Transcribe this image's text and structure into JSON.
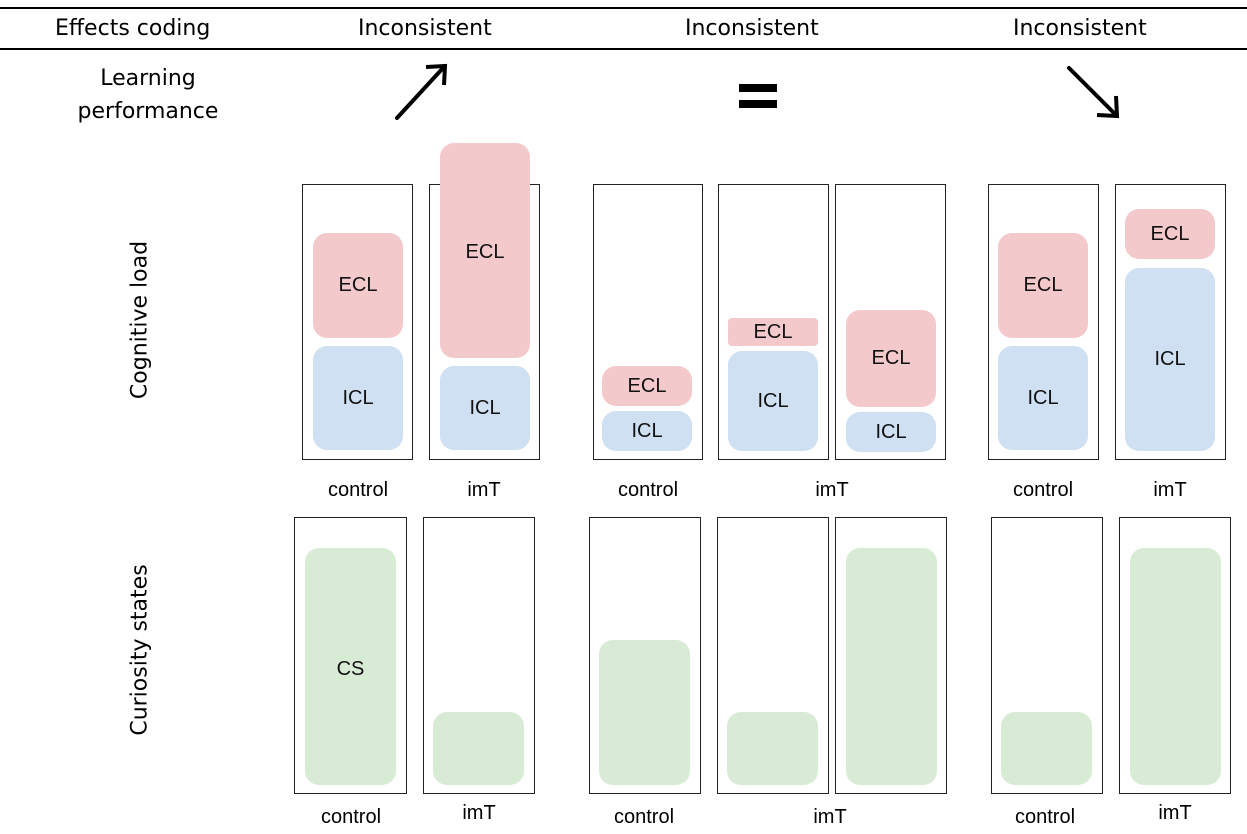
{
  "header": {
    "effects_coding": "Effects coding",
    "columns": [
      "Inconsistent",
      "Inconsistent",
      "Inconsistent"
    ]
  },
  "rows": {
    "learning_performance": [
      "Learning",
      "performance"
    ],
    "cognitive_load": "Cognitive load",
    "curiosity_states": "Curiosity states"
  },
  "learning_symbols": [
    "up-right-arrow",
    "equals-sign",
    "down-right-arrow"
  ],
  "block_labels": {
    "ecl": "ECL",
    "icl": "ICL",
    "cs": "CS"
  },
  "conditions": {
    "control": "control",
    "imt": "imT"
  },
  "colors": {
    "ecl": "#f4c9cb",
    "icl": "#cfe0f2",
    "cs": "#d8ebd4"
  }
}
